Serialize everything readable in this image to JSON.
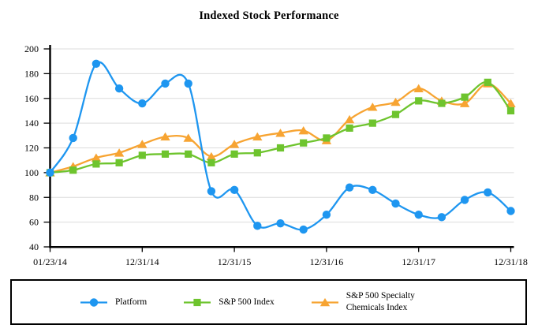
{
  "title": "Indexed Stock Performance",
  "chart_data": {
    "type": "line",
    "title": "Indexed Stock Performance",
    "line_style": "smooth",
    "categories": [
      "01/23/14",
      "03/31/14",
      "06/30/14",
      "09/30/14",
      "12/31/14",
      "03/31/15",
      "06/30/15",
      "09/30/15",
      "12/31/15",
      "03/31/16",
      "06/30/16",
      "09/30/16",
      "12/31/16",
      "03/31/17",
      "06/30/17",
      "09/30/17",
      "12/31/17",
      "03/31/18",
      "06/30/18",
      "09/30/18",
      "12/31/18"
    ],
    "x_tick_labels": [
      "01/23/14",
      "12/31/14",
      "12/31/15",
      "12/31/16",
      "12/31/17",
      "12/31/18"
    ],
    "x_tick_indices": [
      0,
      4,
      8,
      12,
      16,
      20
    ],
    "y_ticks": [
      40,
      60,
      80,
      100,
      120,
      140,
      160,
      180,
      200
    ],
    "ylim": [
      40,
      200
    ],
    "xlabel": "",
    "ylabel": "",
    "grid": "horizontal",
    "grid_color": "#DCDCDC",
    "axis_color": "#000000",
    "background": "#ffffff",
    "legend_position": "bottom",
    "series": [
      {
        "name": "Platform",
        "marker": "circle",
        "color": "#1E96F0",
        "values": [
          100,
          128,
          188,
          168,
          156,
          172,
          172,
          85,
          86,
          57,
          59,
          54,
          66,
          88,
          86,
          75,
          66,
          64,
          78,
          84,
          69
        ]
      },
      {
        "name": "S&P 500 Index",
        "marker": "square",
        "color": "#6EC42E",
        "values": [
          100,
          102,
          107,
          108,
          114,
          115,
          115,
          108,
          115,
          116,
          120,
          124,
          128,
          136,
          140,
          147,
          158,
          156,
          161,
          173,
          150
        ]
      },
      {
        "name": "S&P 500 Specialty Chemicals Index",
        "marker": "triangle",
        "color": "#F7A432",
        "values": [
          100,
          105,
          112,
          116,
          123,
          129,
          128,
          113,
          123,
          129,
          132,
          134,
          126,
          143,
          153,
          157,
          168,
          158,
          156,
          172,
          156
        ]
      }
    ]
  },
  "legend": {
    "items": [
      {
        "label": "Platform"
      },
      {
        "label": "S&P 500 Index"
      },
      {
        "label": "S&P 500 Specialty\nChemicals Index"
      }
    ]
  }
}
